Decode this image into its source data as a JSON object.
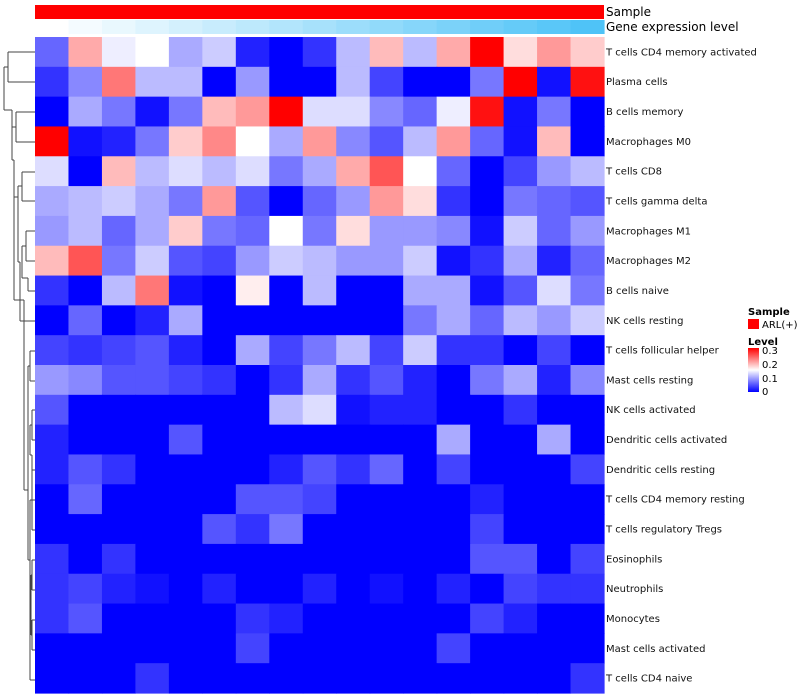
{
  "annotation": {
    "sample_label": "Sample",
    "gene_label": "Gene expression level",
    "sample_color": "#FF0000",
    "gene_gradient_start": "#FFFFFF",
    "gene_gradient_end": "#4FC3F7"
  },
  "legend": {
    "sample_title": "Sample",
    "sample_entry": "ARL(+)",
    "sample_entry_color": "#FF0000",
    "level_title": "Level",
    "level_ticks": [
      "0.3",
      "0.2",
      "0.1",
      "0"
    ]
  },
  "chart_data": {
    "type": "heatmap",
    "title": "",
    "xlabel": "",
    "ylabel": "",
    "color_scale": {
      "low": "#0000FF",
      "mid": "#FFFFFF",
      "high": "#FF0000",
      "range": [
        0,
        0.3
      ]
    },
    "columns": 17,
    "rows": [
      "T cells CD4 memory activated",
      "Plasma cells",
      "B cells memory",
      "Macrophages M0",
      "T cells CD8",
      "T cells gamma delta",
      "Macrophages M1",
      "Macrophages M2",
      "B cells naive",
      "NK cells resting",
      "T cells follicular helper",
      "Mast cells resting",
      "NK cells activated",
      "Dendritic cells activated",
      "Dendritic cells resting",
      "T cells CD4 memory resting",
      "T cells regulatory  Tregs",
      "Eosinophils",
      "Neutrophils",
      "Monocytes",
      "Mast cells activated",
      "T cells CD4 naive"
    ],
    "values": [
      [
        0.06,
        0.2,
        0.14,
        0.15,
        0.1,
        0.12,
        0.02,
        0.0,
        0.03,
        0.11,
        0.19,
        0.11,
        0.2,
        0.3,
        0.17,
        0.21,
        0.18
      ],
      [
        0.03,
        0.08,
        0.23,
        0.11,
        0.11,
        0.0,
        0.09,
        0.0,
        0.0,
        0.11,
        0.04,
        0.0,
        0.0,
        0.07,
        0.3,
        0.01,
        0.29
      ],
      [
        0.0,
        0.1,
        0.07,
        0.01,
        0.07,
        0.19,
        0.21,
        0.3,
        0.13,
        0.13,
        0.08,
        0.06,
        0.14,
        0.29,
        0.01,
        0.07,
        0.0
      ],
      [
        0.3,
        0.01,
        0.02,
        0.07,
        0.18,
        0.22,
        0.15,
        0.1,
        0.21,
        0.08,
        0.05,
        0.11,
        0.21,
        0.06,
        0.01,
        0.19,
        0.0
      ],
      [
        0.13,
        0.0,
        0.19,
        0.11,
        0.13,
        0.11,
        0.13,
        0.07,
        0.1,
        0.2,
        0.25,
        0.15,
        0.06,
        0.0,
        0.04,
        0.09,
        0.11
      ],
      [
        0.1,
        0.11,
        0.12,
        0.1,
        0.07,
        0.21,
        0.05,
        0.0,
        0.06,
        0.09,
        0.21,
        0.17,
        0.03,
        0.0,
        0.07,
        0.06,
        0.05
      ],
      [
        0.09,
        0.11,
        0.06,
        0.1,
        0.18,
        0.07,
        0.06,
        0.15,
        0.07,
        0.17,
        0.09,
        0.09,
        0.08,
        0.01,
        0.12,
        0.06,
        0.09
      ],
      [
        0.19,
        0.25,
        0.07,
        0.12,
        0.05,
        0.04,
        0.09,
        0.12,
        0.11,
        0.09,
        0.09,
        0.12,
        0.01,
        0.03,
        0.1,
        0.02,
        0.06
      ],
      [
        0.03,
        0.0,
        0.11,
        0.23,
        0.01,
        0.0,
        0.16,
        0.0,
        0.11,
        0.0,
        0.0,
        0.1,
        0.1,
        0.01,
        0.05,
        0.13,
        0.07
      ],
      [
        0.0,
        0.06,
        0.0,
        0.02,
        0.1,
        0.0,
        0.0,
        0.0,
        0.0,
        0.0,
        0.0,
        0.07,
        0.1,
        0.06,
        0.11,
        0.09,
        0.12
      ],
      [
        0.04,
        0.03,
        0.04,
        0.05,
        0.02,
        0.0,
        0.1,
        0.04,
        0.07,
        0.11,
        0.04,
        0.12,
        0.03,
        0.03,
        0.0,
        0.04,
        0.0
      ],
      [
        0.09,
        0.08,
        0.05,
        0.05,
        0.04,
        0.03,
        0.0,
        0.03,
        0.1,
        0.03,
        0.05,
        0.02,
        0.0,
        0.07,
        0.1,
        0.02,
        0.08
      ],
      [
        0.05,
        0.0,
        0.0,
        0.0,
        0.0,
        0.0,
        0.0,
        0.11,
        0.13,
        0.01,
        0.02,
        0.02,
        0.0,
        0.0,
        0.03,
        0.0,
        0.0
      ],
      [
        0.02,
        0.0,
        0.0,
        0.0,
        0.05,
        0.0,
        0.0,
        0.0,
        0.0,
        0.0,
        0.0,
        0.0,
        0.1,
        0.0,
        0.0,
        0.1,
        0.0
      ],
      [
        0.02,
        0.05,
        0.03,
        0.0,
        0.0,
        0.0,
        0.0,
        0.02,
        0.05,
        0.03,
        0.06,
        0.0,
        0.04,
        0.0,
        0.0,
        0.0,
        0.04
      ],
      [
        0.0,
        0.06,
        0.0,
        0.0,
        0.0,
        0.0,
        0.05,
        0.05,
        0.04,
        0.0,
        0.0,
        0.0,
        0.0,
        0.02,
        0.0,
        0.0,
        0.0
      ],
      [
        0.0,
        0.0,
        0.0,
        0.0,
        0.0,
        0.05,
        0.03,
        0.07,
        0.0,
        0.0,
        0.0,
        0.0,
        0.0,
        0.04,
        0.0,
        0.0,
        0.0
      ],
      [
        0.03,
        0.0,
        0.03,
        0.0,
        0.0,
        0.0,
        0.0,
        0.0,
        0.0,
        0.0,
        0.0,
        0.0,
        0.0,
        0.05,
        0.05,
        0.0,
        0.04
      ],
      [
        0.03,
        0.04,
        0.02,
        0.01,
        0.0,
        0.02,
        0.0,
        0.0,
        0.02,
        0.0,
        0.01,
        0.0,
        0.02,
        0.0,
        0.04,
        0.03,
        0.03
      ],
      [
        0.03,
        0.05,
        0.0,
        0.0,
        0.0,
        0.0,
        0.03,
        0.02,
        0.0,
        0.0,
        0.0,
        0.0,
        0.0,
        0.04,
        0.02,
        0.0,
        0.0
      ],
      [
        0.0,
        0.0,
        0.0,
        0.0,
        0.0,
        0.0,
        0.04,
        0.0,
        0.0,
        0.0,
        0.0,
        0.0,
        0.04,
        0.0,
        0.0,
        0.0,
        0.0
      ],
      [
        0.0,
        0.0,
        0.0,
        0.03,
        0.0,
        0.0,
        0.0,
        0.0,
        0.0,
        0.0,
        0.0,
        0.0,
        0.0,
        0.0,
        0.0,
        0.0,
        0.03
      ]
    ]
  }
}
